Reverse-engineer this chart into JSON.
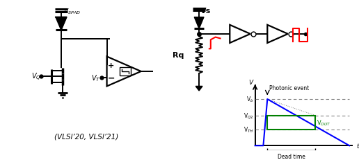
{
  "bg_color": "#ffffff",
  "left_circuit": {
    "vspad_label": "V$_{SPAD}$",
    "vq_label": "V$_Q$",
    "vt_label": "V$_T$",
    "caption": "(VLSl’20, VLSl’21)"
  },
  "right_circuit": {
    "vs_label": "Vs",
    "rq_label": "Rq",
    "graph": {
      "vb_label": "V$_b$",
      "vq2_label": "V$_{Q2}$",
      "vth_label": "V$_{TH}$",
      "vout_label": "V$_{OUT}$",
      "dead_time_label": "Dead time",
      "photonic_label": "Photonic event"
    }
  }
}
